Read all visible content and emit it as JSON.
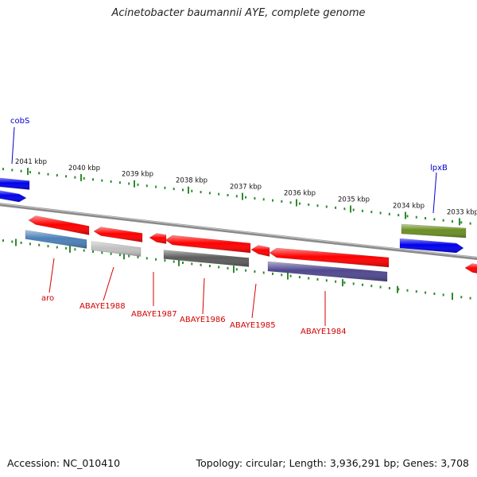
{
  "title": "Acinetobacter baumannii AYE, complete genome",
  "footer": {
    "accession": "Accession: NC_010410",
    "summary": "Topology: circular; Length: 3,936,291 bp; Genes: 3,708"
  },
  "colors": {
    "backbone": "#8a8a8a",
    "tick": "#2e8b2e",
    "kbp_label": "#111111",
    "gene_label_red": "#d40000",
    "gene_label_blue": "#0000cc"
  },
  "kbp_ticks": [
    {
      "label": "2041 kbp"
    },
    {
      "label": "2040 kbp"
    },
    {
      "label": "2039 kbp"
    },
    {
      "label": "2038 kbp"
    },
    {
      "label": "2037 kbp"
    },
    {
      "label": "2036 kbp"
    },
    {
      "label": "2035 kbp"
    },
    {
      "label": "2034 kbp"
    },
    {
      "label": "2033 kbp"
    }
  ],
  "genes": [
    {
      "name": "cobS",
      "color": "#0000ee",
      "strand": "minus"
    },
    {
      "name": "",
      "color": "#0000ee",
      "strand": "plus"
    },
    {
      "name": "",
      "color": "#ff0000",
      "strand": "minus"
    },
    {
      "name": "aro",
      "color": "#4a80b8",
      "strand": "plus"
    },
    {
      "name": "",
      "color": "#ff0000",
      "strand": "minus"
    },
    {
      "name": "ABAYE1988",
      "color": "#c0c0c0",
      "strand": "plus"
    },
    {
      "name": "ABAYE1987",
      "color": "#ff0000",
      "strand": "minus"
    },
    {
      "name": "",
      "color": "#ff0000",
      "strand": "minus"
    },
    {
      "name": "ABAYE1986",
      "color": "#5c5c5c",
      "strand": "plus"
    },
    {
      "name": "ABAYE1985",
      "color": "#ff0000",
      "strand": "minus"
    },
    {
      "name": "",
      "color": "#ff0000",
      "strand": "minus"
    },
    {
      "name": "ABAYE1984",
      "color": "#504890",
      "strand": "plus"
    },
    {
      "name": "lpxB",
      "color": "#6b8e23",
      "strand": "minus"
    },
    {
      "name": "",
      "color": "#0000ee",
      "strand": "plus"
    },
    {
      "name": "",
      "color": "#ff0000",
      "strand": "minus"
    }
  ]
}
